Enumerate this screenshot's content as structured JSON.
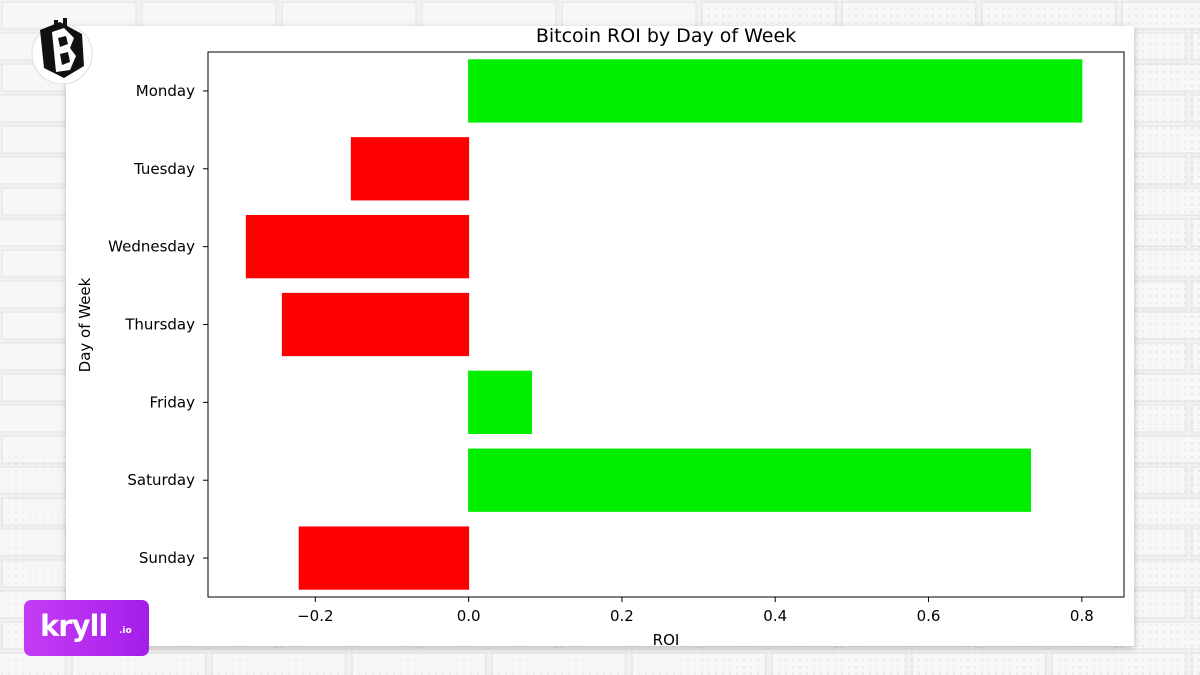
{
  "branding": {
    "top_logo_icon": "bitcoin-sticker-icon",
    "bottom_logo_text": "kryll",
    "bottom_logo_tld": ".io",
    "bottom_logo_color": "#b52cf0"
  },
  "chart_data": {
    "type": "bar",
    "orientation": "horizontal",
    "title": "Bitcoin ROI by Day of Week",
    "xlabel": "ROI",
    "ylabel": "Day of Week",
    "categories": [
      "Monday",
      "Tuesday",
      "Wednesday",
      "Thursday",
      "Friday",
      "Saturday",
      "Sunday"
    ],
    "values": [
      0.8,
      -0.153,
      -0.29,
      -0.243,
      0.082,
      0.733,
      -0.221
    ],
    "xlim": [
      -0.34,
      0.855
    ],
    "xticks": [
      -0.2,
      0.0,
      0.2,
      0.4,
      0.6,
      0.8
    ],
    "xtick_labels": [
      "−0.2",
      "0.0",
      "0.2",
      "0.4",
      "0.6",
      "0.8"
    ],
    "positive_color": "#00ee00",
    "negative_color": "#ff0000",
    "grid": false,
    "legend": "none"
  }
}
